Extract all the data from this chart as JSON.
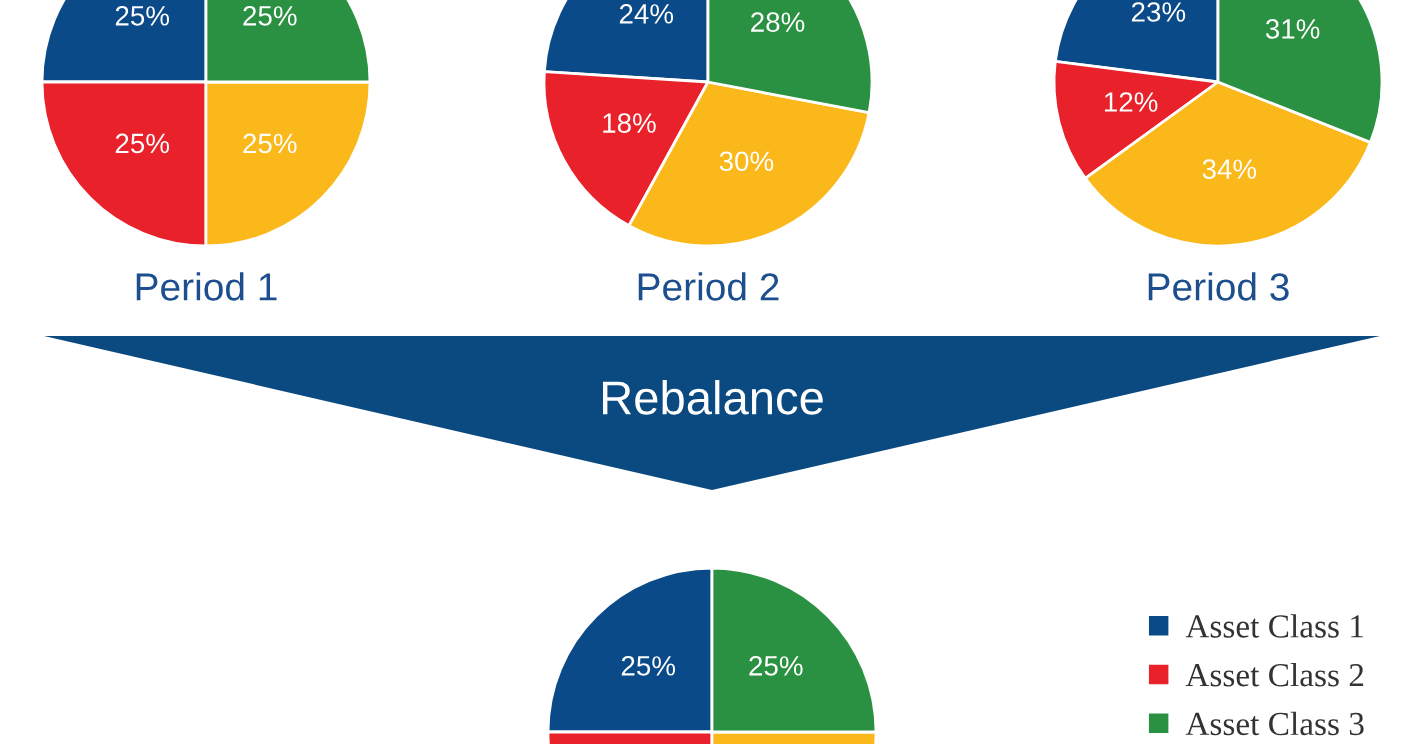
{
  "chart_data": [
    {
      "type": "pie",
      "title": "Period 1",
      "categories": [
        null,
        null,
        null,
        null
      ],
      "values": [
        25,
        25,
        25,
        25
      ],
      "colors": [
        "#0b4a89",
        "#e8212a",
        "#fbb81a",
        "#2b9142"
      ],
      "value_labels": [
        "25%",
        "25%",
        "25%",
        "25%"
      ]
    },
    {
      "type": "pie",
      "title": "Period 2",
      "categories": [
        null,
        null,
        null,
        null
      ],
      "values": [
        24,
        18,
        30,
        28
      ],
      "colors": [
        "#0b4a89",
        "#e8212a",
        "#fbb81a",
        "#2b9142"
      ],
      "value_labels": [
        "24%",
        "18%",
        "30%",
        "28%"
      ]
    },
    {
      "type": "pie",
      "title": "Period 3",
      "categories": [
        null,
        null,
        null,
        null
      ],
      "values": [
        23,
        12,
        34,
        31
      ],
      "colors": [
        "#0b4a89",
        "#e8212a",
        "#fbb81a",
        "#2b9142"
      ],
      "value_labels": [
        "23%",
        "12%",
        "34%",
        "31%"
      ]
    },
    {
      "type": "pie",
      "annotations": [
        "Rebalance"
      ],
      "categories": [
        "Asset Class 1",
        "Asset Class 2",
        null,
        "Asset Class 3"
      ],
      "values": [
        25,
        25,
        25,
        25
      ],
      "colors": [
        "#0b4a89",
        "#e8212a",
        "#fbb81a",
        "#2b9142"
      ],
      "value_labels": [
        "25%",
        null,
        null,
        "25%"
      ],
      "legend": "right"
    }
  ]
}
